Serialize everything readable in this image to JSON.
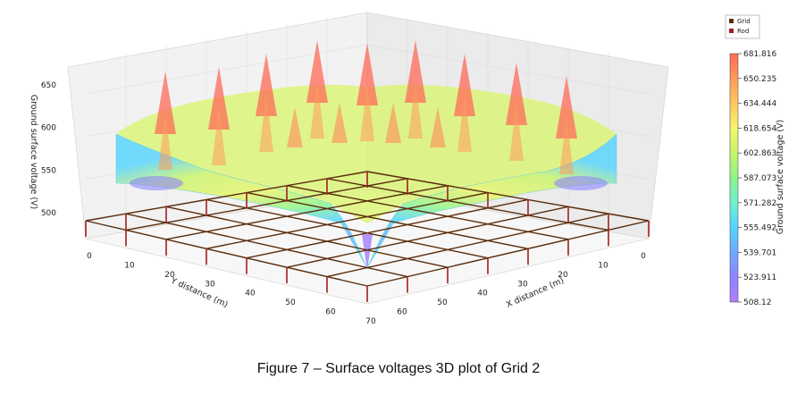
{
  "chart_data": {
    "type": "surface3d",
    "caption": "Figure 7 – Surface voltages 3D plot of Grid 2",
    "xlabel": "X distance (m)",
    "ylabel": "Y distance (m)",
    "zlabel": "Ground surface voltage (V)",
    "x_ticks": [
      0,
      10,
      20,
      30,
      40,
      50,
      60
    ],
    "y_ticks": [
      0,
      10,
      20,
      30,
      40,
      50,
      60,
      70
    ],
    "z_ticks": [
      500,
      550,
      600,
      650
    ],
    "xlim": [
      0,
      70
    ],
    "ylim": [
      0,
      70
    ],
    "zlim": [
      480,
      690
    ],
    "legend": {
      "position": "top-right",
      "entries": [
        {
          "label": "Grid",
          "color": "#5a2d0c"
        },
        {
          "label": "Rod",
          "color": "#a01f1f"
        }
      ]
    },
    "colorbar": {
      "label": "Ground surface voltage (V)",
      "min": 508.12,
      "max": 681.816,
      "ticks": [
        "681.816",
        "650.235",
        "634.444",
        "618.654",
        "602.863",
        "587.073",
        "571.282",
        "555.492",
        "539.701",
        "523.911",
        "508.12"
      ],
      "colormap": [
        "#b07cff",
        "#8f84ff",
        "#6fa8ff",
        "#55d4ff",
        "#6ff0d0",
        "#8cf58a",
        "#c8f56a",
        "#f4f56a",
        "#ffc860",
        "#ff9a58",
        "#ff6a5a"
      ]
    },
    "surface": {
      "min_voltage": 508.12,
      "max_voltage": 681.816,
      "conductor_spacing_m": 10,
      "peaks_along_x": 11,
      "note_visible": "peaks at grid line positions, dip at grid center"
    },
    "grid": {
      "lines_x": [
        0,
        10,
        20,
        30,
        40,
        50,
        60,
        70
      ],
      "lines_y": [
        0,
        10,
        20,
        30,
        40,
        50,
        60,
        70
      ],
      "rods": [
        [
          0,
          0
        ],
        [
          10,
          0
        ],
        [
          20,
          0
        ],
        [
          30,
          0
        ],
        [
          40,
          0
        ],
        [
          50,
          0
        ],
        [
          60,
          0
        ],
        [
          70,
          0
        ],
        [
          0,
          10
        ],
        [
          0,
          20
        ],
        [
          0,
          30
        ],
        [
          0,
          40
        ],
        [
          0,
          50
        ],
        [
          0,
          60
        ],
        [
          0,
          70
        ],
        [
          70,
          10
        ],
        [
          70,
          20
        ],
        [
          70,
          30
        ],
        [
          70,
          40
        ],
        [
          70,
          50
        ],
        [
          70,
          60
        ],
        [
          70,
          70
        ],
        [
          10,
          70
        ],
        [
          20,
          70
        ],
        [
          30,
          70
        ],
        [
          40,
          70
        ],
        [
          50,
          70
        ],
        [
          60,
          70
        ]
      ]
    }
  }
}
